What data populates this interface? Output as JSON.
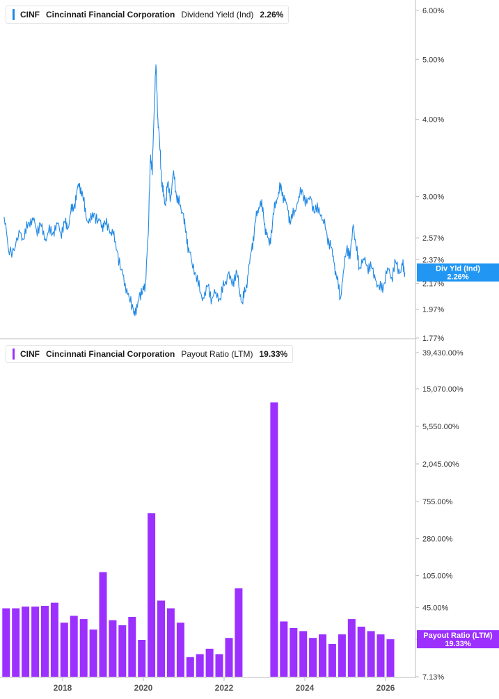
{
  "colors": {
    "yield": "#1e88e5",
    "payout": "#9b30ff",
    "axis": "#bdbdbd",
    "tag_yield": "#2196f3"
  },
  "top_legend": {
    "ticker": "CINF",
    "name": "Cincinnati Financial Corporation",
    "metric": "Dividend Yield (Ind)",
    "value": "2.26%"
  },
  "bottom_legend": {
    "ticker": "CINF",
    "name": "Cincinnati Financial Corporation",
    "metric": "Payout Ratio (LTM)",
    "value": "19.33%"
  },
  "chart_data": [
    {
      "type": "line",
      "series": [
        {
          "name": "Dividend Yield (Ind)"
        }
      ],
      "y_scale": "log",
      "ylim": [
        1.77,
        6.0
      ],
      "y_ticks": [
        "6.00%",
        "5.00%",
        "4.00%",
        "3.00%",
        "2.57%",
        "2.37%",
        "2.17%",
        "1.97%",
        "1.77%"
      ],
      "y_tick_values": [
        6.0,
        5.0,
        4.0,
        3.0,
        2.57,
        2.37,
        2.17,
        1.97,
        1.77
      ],
      "current_tag": {
        "label": "Div Yld (Ind)",
        "value": "2.26%",
        "y": 2.26
      },
      "points": [
        [
          2016.55,
          2.78
        ],
        [
          2016.65,
          2.48
        ],
        [
          2016.8,
          2.45
        ],
        [
          2016.95,
          2.62
        ],
        [
          2017.05,
          2.56
        ],
        [
          2017.15,
          2.72
        ],
        [
          2017.25,
          2.77
        ],
        [
          2017.35,
          2.65
        ],
        [
          2017.45,
          2.71
        ],
        [
          2017.55,
          2.55
        ],
        [
          2017.65,
          2.63
        ],
        [
          2017.75,
          2.61
        ],
        [
          2017.85,
          2.72
        ],
        [
          2017.95,
          2.62
        ],
        [
          2018.05,
          2.73
        ],
        [
          2018.12,
          2.65
        ],
        [
          2018.2,
          2.82
        ],
        [
          2018.28,
          2.88
        ],
        [
          2018.35,
          3.05
        ],
        [
          2018.42,
          3.15
        ],
        [
          2018.5,
          3.0
        ],
        [
          2018.58,
          2.78
        ],
        [
          2018.68,
          2.72
        ],
        [
          2018.78,
          2.82
        ],
        [
          2018.88,
          2.74
        ],
        [
          2018.98,
          2.7
        ],
        [
          2019.05,
          2.72
        ],
        [
          2019.15,
          2.66
        ],
        [
          2019.25,
          2.6
        ],
        [
          2019.35,
          2.45
        ],
        [
          2019.45,
          2.28
        ],
        [
          2019.55,
          2.17
        ],
        [
          2019.65,
          2.05
        ],
        [
          2019.75,
          1.97
        ],
        [
          2019.82,
          1.93
        ],
        [
          2019.9,
          2.08
        ],
        [
          2019.98,
          2.1
        ],
        [
          2020.05,
          2.17
        ],
        [
          2020.12,
          2.6
        ],
        [
          2020.18,
          3.5
        ],
        [
          2020.22,
          3.25
        ],
        [
          2020.27,
          4.2
        ],
        [
          2020.31,
          4.9
        ],
        [
          2020.36,
          4.0
        ],
        [
          2020.4,
          3.7
        ],
        [
          2020.45,
          3.2
        ],
        [
          2020.5,
          3.0
        ],
        [
          2020.55,
          2.9
        ],
        [
          2020.6,
          3.15
        ],
        [
          2020.68,
          3.0
        ],
        [
          2020.75,
          3.3
        ],
        [
          2020.82,
          3.0
        ],
        [
          2020.9,
          2.9
        ],
        [
          2020.98,
          2.82
        ],
        [
          2021.05,
          2.62
        ],
        [
          2021.12,
          2.48
        ],
        [
          2021.2,
          2.35
        ],
        [
          2021.3,
          2.25
        ],
        [
          2021.4,
          2.1
        ],
        [
          2021.5,
          2.05
        ],
        [
          2021.6,
          2.15
        ],
        [
          2021.7,
          2.05
        ],
        [
          2021.8,
          2.1
        ],
        [
          2021.9,
          2.05
        ],
        [
          2022.0,
          2.15
        ],
        [
          2022.1,
          2.25
        ],
        [
          2022.2,
          2.15
        ],
        [
          2022.3,
          2.28
        ],
        [
          2022.38,
          2.12
        ],
        [
          2022.45,
          2.02
        ],
        [
          2022.52,
          2.1
        ],
        [
          2022.6,
          2.25
        ],
        [
          2022.68,
          2.45
        ],
        [
          2022.75,
          2.65
        ],
        [
          2022.83,
          2.85
        ],
        [
          2022.9,
          2.95
        ],
        [
          2022.98,
          2.78
        ],
        [
          2023.05,
          2.6
        ],
        [
          2023.12,
          2.5
        ],
        [
          2023.2,
          2.72
        ],
        [
          2023.28,
          2.95
        ],
        [
          2023.35,
          3.05
        ],
        [
          2023.42,
          3.1
        ],
        [
          2023.5,
          2.95
        ],
        [
          2023.58,
          2.85
        ],
        [
          2023.65,
          2.72
        ],
        [
          2023.75,
          2.85
        ],
        [
          2023.85,
          3.0
        ],
        [
          2023.95,
          3.05
        ],
        [
          2024.05,
          2.92
        ],
        [
          2024.15,
          2.98
        ],
        [
          2024.25,
          2.82
        ],
        [
          2024.35,
          2.88
        ],
        [
          2024.45,
          2.75
        ],
        [
          2024.55,
          2.6
        ],
        [
          2024.65,
          2.48
        ],
        [
          2024.72,
          2.35
        ],
        [
          2024.8,
          2.2
        ],
        [
          2024.88,
          2.05
        ],
        [
          2024.95,
          2.25
        ],
        [
          2025.05,
          2.5
        ],
        [
          2025.12,
          2.38
        ],
        [
          2025.2,
          2.7
        ],
        [
          2025.28,
          2.45
        ],
        [
          2025.35,
          2.3
        ],
        [
          2025.45,
          2.38
        ],
        [
          2025.55,
          2.32
        ],
        [
          2025.65,
          2.3
        ],
        [
          2025.75,
          2.2
        ],
        [
          2025.85,
          2.12
        ],
        [
          2025.95,
          2.15
        ],
        [
          2026.05,
          2.3
        ],
        [
          2026.15,
          2.22
        ],
        [
          2026.25,
          2.35
        ],
        [
          2026.35,
          2.25
        ],
        [
          2026.42,
          2.32
        ],
        [
          2026.48,
          2.26
        ]
      ]
    },
    {
      "type": "bar",
      "series": [
        {
          "name": "Payout Ratio (LTM)"
        }
      ],
      "y_scale": "log",
      "ylim": [
        7.13,
        39430
      ],
      "y_ticks": [
        "39,430.00%",
        "15,070.00%",
        "5,550.00%",
        "2,045.00%",
        "755.00%",
        "280.00%",
        "105.00%",
        "45.00%",
        "19.33%",
        "7.13%"
      ],
      "y_tick_values": [
        39430,
        15070,
        5550,
        2045,
        755,
        280,
        105,
        45,
        19.33,
        7.13
      ],
      "current_tag": {
        "label": "Payout Ratio (LTM)",
        "value": "19.33%",
        "y": 19.33
      },
      "x_ticks": [
        "2018",
        "2020",
        "2022",
        "2024",
        "2026"
      ],
      "x_tick_values": [
        2018.0,
        2020.0,
        2022.0,
        2024.0,
        2026.0
      ],
      "bars": [
        [
          2016.6,
          44
        ],
        [
          2016.84,
          44
        ],
        [
          2017.08,
          46
        ],
        [
          2017.32,
          46
        ],
        [
          2017.56,
          47
        ],
        [
          2017.8,
          51
        ],
        [
          2018.04,
          30
        ],
        [
          2018.28,
          36
        ],
        [
          2018.52,
          33
        ],
        [
          2018.76,
          25
        ],
        [
          2019.0,
          115
        ],
        [
          2019.24,
          32
        ],
        [
          2019.48,
          28
        ],
        [
          2019.72,
          35
        ],
        [
          2019.96,
          19
        ],
        [
          2020.2,
          550
        ],
        [
          2020.44,
          54
        ],
        [
          2020.68,
          44
        ],
        [
          2020.92,
          30
        ],
        [
          2021.16,
          12
        ],
        [
          2021.4,
          13
        ],
        [
          2021.64,
          15
        ],
        [
          2021.88,
          13
        ],
        [
          2022.12,
          20
        ],
        [
          2022.36,
          75
        ],
        [
          2023.24,
          10500
        ],
        [
          2023.48,
          31
        ],
        [
          2023.72,
          26
        ],
        [
          2023.96,
          24
        ],
        [
          2024.2,
          20
        ],
        [
          2024.44,
          22
        ],
        [
          2024.68,
          17
        ],
        [
          2024.92,
          22
        ],
        [
          2025.16,
          33
        ],
        [
          2025.4,
          27
        ],
        [
          2025.64,
          24
        ],
        [
          2025.88,
          22
        ],
        [
          2026.12,
          19.33
        ]
      ]
    }
  ]
}
